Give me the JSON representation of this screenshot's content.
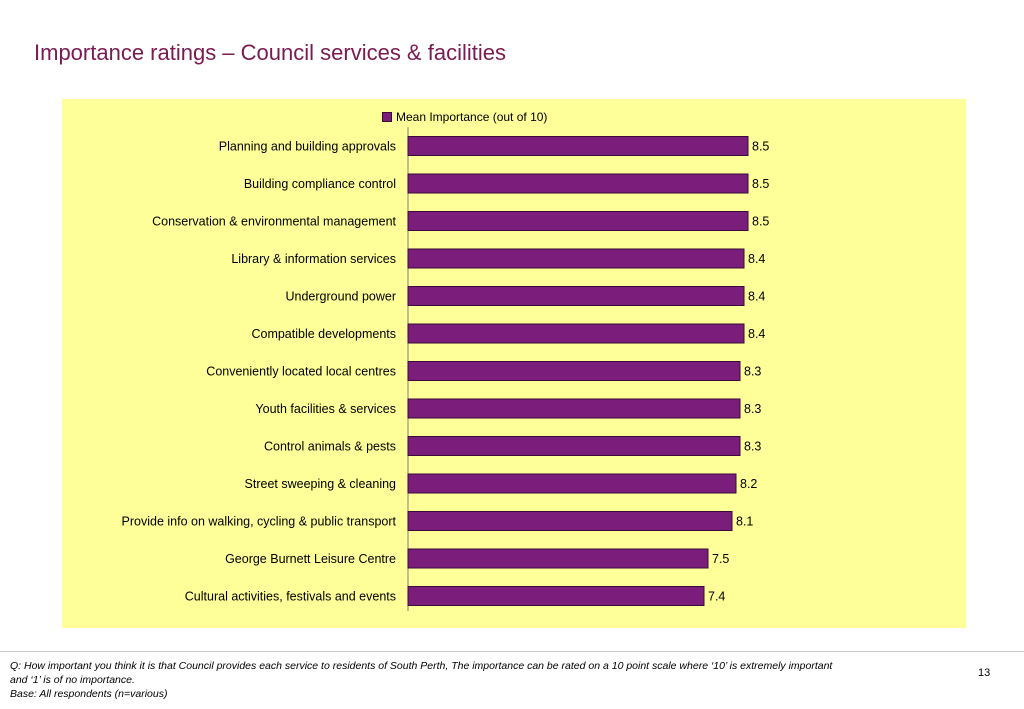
{
  "page": {
    "title": "Importance ratings – Council services & facilities",
    "footnote_question": "Q: How important you think it is that Council provides each service to residents of South Perth, The importance can be rated on a 10 point scale where ‘10’ is extremely important and ‘1’ is of no importance.",
    "footnote_base": "Base: All respondents (n=various)",
    "page_number": "13"
  },
  "chart_data": {
    "type": "bar",
    "orientation": "horizontal",
    "categories": [
      "Planning and building approvals",
      "Building compliance control",
      "Conservation & environmental management",
      "Library & information services",
      "Underground power",
      "Compatible developments",
      "Conveniently located local centres",
      "Youth facilities & services",
      "Control animals & pests",
      "Street sweeping & cleaning",
      "Provide info on walking, cycling & public transport",
      "George Burnett Leisure Centre",
      "Cultural activities, festivals and events"
    ],
    "series": [
      {
        "name": "Mean Importance (out of 10)",
        "values": [
          8.5,
          8.5,
          8.5,
          8.4,
          8.4,
          8.4,
          8.3,
          8.3,
          8.3,
          8.2,
          8.1,
          7.5,
          7.4
        ],
        "labels": [
          "8.5",
          "8.5",
          "8.5",
          "8.4",
          "8.4",
          "8.4",
          "8.3",
          "8.3",
          "8.3",
          "8.2",
          "8.1",
          "7.5",
          "7.4"
        ]
      }
    ],
    "xlim": [
      0,
      10
    ],
    "legend_position": "top",
    "gridlines": false,
    "colors": {
      "bar": "#7b1e7b",
      "bar_border": "#3a0a3a",
      "plot_background": "#ffff99",
      "title": "#7a1a52"
    }
  }
}
